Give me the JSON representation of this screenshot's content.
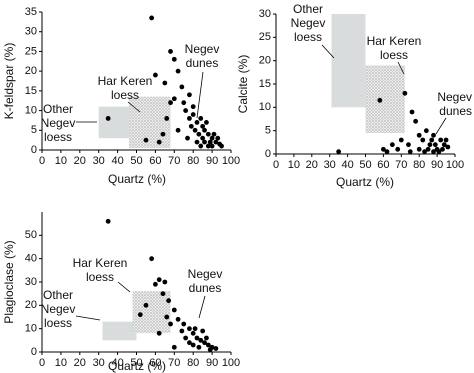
{
  "chart_data": [
    {
      "type": "scatter",
      "xlabel": "Quartz (%)",
      "ylabel": "K-feldspar (%)",
      "xlim": [
        0,
        100
      ],
      "ylim": [
        0,
        35
      ],
      "xticks": [
        0,
        10,
        20,
        30,
        40,
        50,
        60,
        70,
        80,
        90,
        100
      ],
      "yticks": [
        0,
        5,
        10,
        15,
        20,
        25,
        30,
        35
      ],
      "color": "#000000",
      "regions": [
        {
          "label": [
            "Other",
            "Negev",
            "loess"
          ],
          "xlim": [
            30,
            48
          ],
          "ylim": [
            3,
            11
          ],
          "fill": "#d8dcdc",
          "stipple": false
        },
        {
          "label": [
            "Har Keren",
            "loess"
          ],
          "xlim": [
            46,
            68
          ],
          "ylim": [
            0.5,
            13.5
          ],
          "fill": "#e6e6e6",
          "stipple": true
        }
      ],
      "cluster_label": [
        "Negev",
        "dunes"
      ],
      "x": [
        58,
        68,
        70,
        72,
        60,
        65,
        74,
        78,
        70,
        68,
        75,
        80,
        35,
        55,
        62,
        64,
        66,
        72,
        76,
        78,
        80,
        82,
        84,
        85,
        86,
        88,
        90,
        92,
        94,
        83,
        87,
        89,
        91,
        93,
        81,
        79,
        85,
        88,
        90,
        86,
        77,
        82,
        84,
        95
      ],
      "y": [
        33.5,
        25,
        23,
        20,
        19,
        17,
        16,
        14,
        13,
        12,
        12,
        11,
        8,
        2.5,
        2,
        4,
        8,
        5,
        10,
        8,
        9,
        7,
        8,
        6,
        5,
        4,
        3,
        2,
        1.5,
        4,
        7,
        2,
        4,
        3,
        5,
        6,
        3,
        1,
        1,
        2,
        3,
        2,
        1,
        1
      ]
    },
    {
      "type": "scatter",
      "xlabel": "Quartz (%)",
      "ylabel": "Calcite (%)",
      "xlim": [
        0,
        100
      ],
      "ylim": [
        0,
        30
      ],
      "xticks": [
        0,
        10,
        20,
        30,
        40,
        50,
        60,
        70,
        80,
        90,
        100
      ],
      "yticks": [
        0,
        5,
        10,
        15,
        20,
        25,
        30
      ],
      "color": "#000000",
      "regions": [
        {
          "label": [
            "Other",
            "Negev",
            "loess"
          ],
          "xlim": [
            31,
            50
          ],
          "ylim": [
            10,
            30
          ],
          "fill": "#d8dcdc",
          "stipple": false
        },
        {
          "label": [
            "Har Keren",
            "loess"
          ],
          "xlim": [
            50,
            72
          ],
          "ylim": [
            4.5,
            19
          ],
          "fill": "#e6e6e6",
          "stipple": true
        }
      ],
      "cluster_label": [
        "Negev",
        "dunes"
      ],
      "x": [
        35,
        58,
        72,
        76,
        78,
        80,
        60,
        65,
        70,
        74,
        82,
        84,
        86,
        88,
        90,
        92,
        94,
        85,
        87,
        89,
        91,
        93,
        95,
        80,
        83,
        75,
        68,
        62,
        88,
        96
      ],
      "y": [
        0.5,
        11.5,
        13,
        9,
        7,
        4,
        1,
        2,
        3,
        2,
        3,
        5,
        2,
        4,
        1,
        3,
        2,
        1,
        3,
        2,
        0.5,
        1,
        3,
        1,
        0.5,
        0.5,
        1,
        0.5,
        0.5,
        1.5
      ]
    },
    {
      "type": "scatter",
      "xlabel": "Quartz (%)",
      "ylabel": "Plagioclase (%)",
      "xlim": [
        0,
        100
      ],
      "ylim": [
        0,
        60
      ],
      "xticks": [
        0,
        10,
        20,
        30,
        40,
        50,
        60,
        70,
        80,
        90,
        100
      ],
      "yticks": [
        0,
        10,
        20,
        30,
        40,
        50
      ],
      "color": "#000000",
      "regions": [
        {
          "label": [
            "Other",
            "Negev",
            "loess"
          ],
          "xlim": [
            32,
            50
          ],
          "ylim": [
            5,
            13
          ],
          "fill": "#d8dcdc",
          "stipple": false
        },
        {
          "label": [
            "Har Keren",
            "loess"
          ],
          "xlim": [
            48,
            68
          ],
          "ylim": [
            8,
            26
          ],
          "fill": "#e6e6e6",
          "stipple": true
        }
      ],
      "cluster_label": [
        "Negev",
        "dunes"
      ],
      "x": [
        35,
        58,
        62,
        65,
        60,
        55,
        52,
        67,
        70,
        72,
        75,
        78,
        80,
        82,
        84,
        85,
        86,
        88,
        90,
        92,
        70,
        62,
        76,
        78,
        80,
        83,
        87,
        89,
        81,
        74,
        68,
        64,
        66
      ],
      "y": [
        56,
        40,
        31,
        30,
        29,
        20,
        16,
        22,
        18,
        14,
        12,
        10,
        8,
        6,
        5,
        9,
        4,
        3,
        2,
        1.5,
        2,
        8,
        6,
        4,
        3,
        2,
        6,
        1,
        10,
        9,
        12,
        25,
        15
      ]
    }
  ]
}
